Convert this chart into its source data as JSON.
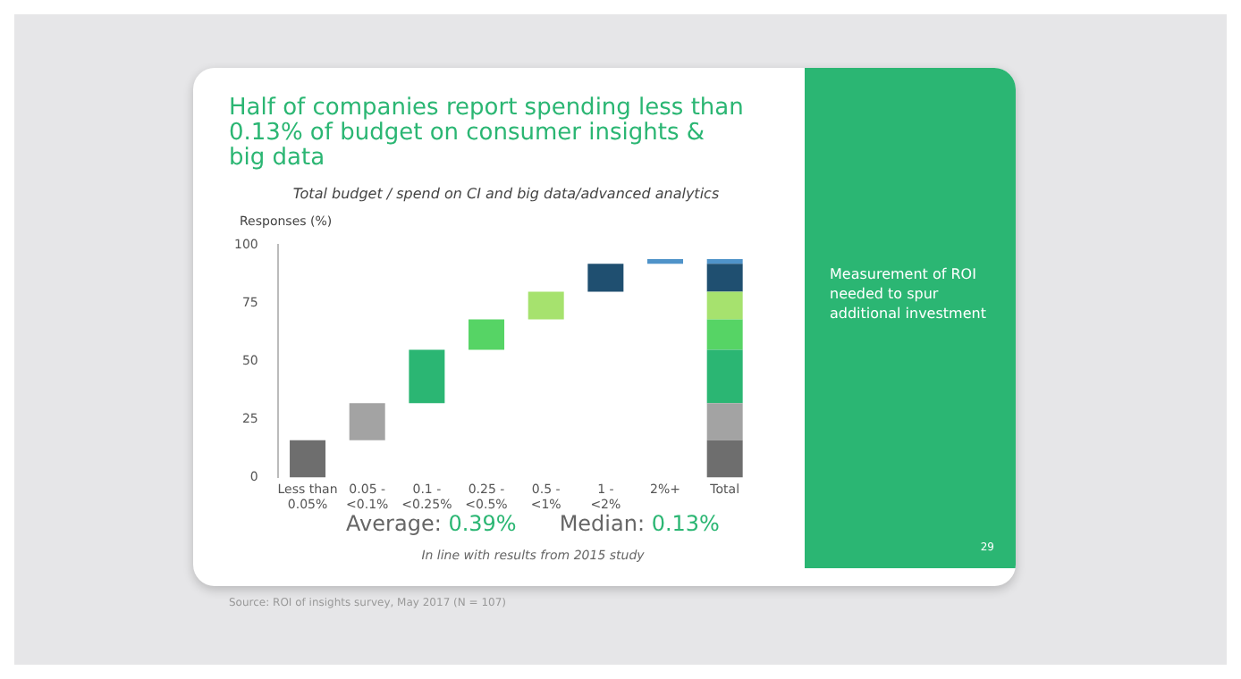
{
  "chart_data": {
    "type": "bar",
    "title": "Half of companies report spending less than 0.13% of budget on consumer insights & big data",
    "subtitle": "Total budget / spend on CI and big data/advanced analytics",
    "ylabel": "Responses (%)",
    "categories": [
      "Less than 0.05%",
      "0.05 - <0.1%",
      "0.1 - <0.25%",
      "0.25 - <0.5%",
      "0.5 - <1%",
      "1 - <2%",
      "2%+",
      "Total"
    ],
    "series": [
      {
        "color": "#6e6e6e",
        "values": [
          16,
          null,
          null,
          null,
          null,
          null,
          null,
          16
        ],
        "base": [
          0,
          null,
          null,
          null,
          null,
          null,
          null,
          0
        ]
      },
      {
        "color": "#a3a3a3",
        "values": [
          null,
          16,
          null,
          null,
          null,
          null,
          null,
          16
        ],
        "base": [
          null,
          16,
          null,
          null,
          null,
          null,
          null,
          16
        ]
      },
      {
        "color": "#2bb673",
        "values": [
          null,
          null,
          23,
          null,
          null,
          null,
          null,
          23
        ],
        "base": [
          null,
          null,
          32,
          null,
          null,
          null,
          null,
          32
        ]
      },
      {
        "color": "#56d465",
        "values": [
          null,
          null,
          null,
          13,
          null,
          null,
          null,
          13
        ],
        "base": [
          null,
          null,
          null,
          55,
          null,
          null,
          null,
          55
        ]
      },
      {
        "color": "#a6e26e",
        "values": [
          null,
          null,
          null,
          null,
          12,
          null,
          null,
          12
        ],
        "base": [
          null,
          null,
          null,
          null,
          68,
          null,
          null,
          68
        ]
      },
      {
        "color": "#1f4f70",
        "values": [
          null,
          null,
          null,
          null,
          null,
          12,
          null,
          12
        ],
        "base": [
          null,
          null,
          null,
          null,
          null,
          80,
          null,
          80
        ]
      },
      {
        "color": "#4f93c9",
        "values": [
          null,
          null,
          null,
          null,
          null,
          null,
          2,
          2
        ],
        "base": [
          null,
          null,
          null,
          null,
          null,
          null,
          92,
          92
        ]
      }
    ],
    "ylim": [
      0,
      100
    ],
    "yticks": [
      0,
      25,
      50,
      75,
      100
    ],
    "grid": false,
    "legend": false,
    "annotations": [
      "Average: 0.39%",
      "Median: 0.13%",
      "In line with results from 2015 study",
      "Source: ROI of insights survey, May 2017 (N = 107)",
      "Measurement of ROI needed to spur additional investment",
      "29"
    ]
  }
}
